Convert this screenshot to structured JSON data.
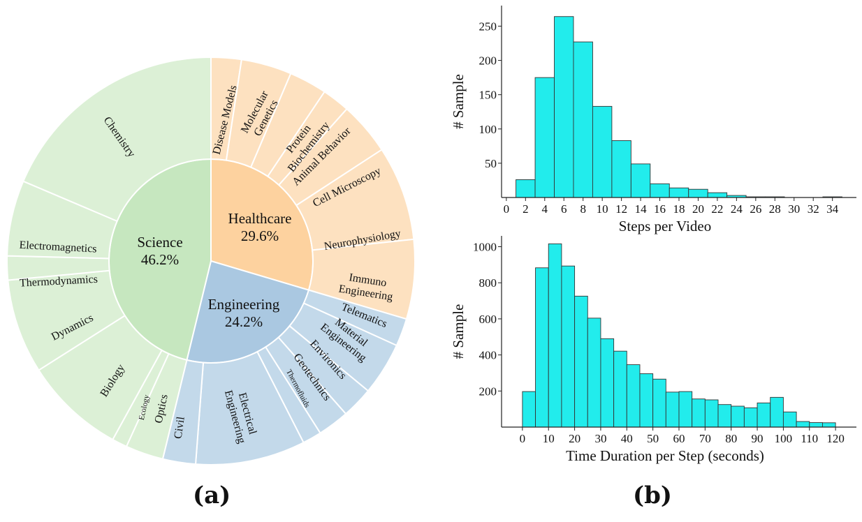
{
  "captions": {
    "a": "(a)",
    "b": "(b)"
  },
  "colors": {
    "science_inner": "#c6e7bf",
    "science_outer": "#dcf0d6",
    "healthcare_inner": "#fdd29f",
    "healthcare_outer": "#fde1c0",
    "engineering_inner": "#aac8e1",
    "engineering_outer": "#c3d9ea",
    "bar_fill": "#22ecec",
    "bar_edge": "#333333"
  },
  "chart_data": [
    {
      "type": "pie",
      "title": "",
      "inner": [
        {
          "name": "Science",
          "label": "46.2%",
          "value": 46.2
        },
        {
          "name": "Healthcare",
          "label": "29.6%",
          "value": 29.6
        },
        {
          "name": "Engineering",
          "label": "24.2%",
          "value": 24.2
        }
      ],
      "outer": [
        {
          "name": "Disease Models",
          "parent": "Healthcare",
          "value": 2.4
        },
        {
          "name": "Molecular Genetics",
          "parent": "Healthcare",
          "value": 4.0
        },
        {
          "name": "Protein Biochemistry",
          "parent": "Healthcare",
          "value": 3.0
        },
        {
          "name": "Animal Behavior",
          "parent": "Healthcare",
          "value": 2.2
        },
        {
          "name": "Cell Microscopy",
          "parent": "Healthcare",
          "value": 4.2
        },
        {
          "name": "Neurophysiology",
          "parent": "Healthcare",
          "value": 7.5
        },
        {
          "name": "Immuno Engineering",
          "parent": "Healthcare",
          "value": 6.3
        },
        {
          "name": "Telematics",
          "parent": "Engineering",
          "value": 2.2
        },
        {
          "name": "Material Engineering",
          "parent": "Engineering",
          "value": 4.2
        },
        {
          "name": "Environics",
          "parent": "Engineering",
          "value": 2.5
        },
        {
          "name": "Geotechnics",
          "parent": "Engineering",
          "value": 2.5
        },
        {
          "name": "Thermofluids",
          "parent": "Engineering",
          "value": 1.5
        },
        {
          "name": "Electrical Engineering",
          "parent": "Engineering",
          "value": 8.7
        },
        {
          "name": "Civil",
          "parent": "Engineering",
          "value": 2.6
        },
        {
          "name": "Optics",
          "parent": "Science",
          "value": 3.0
        },
        {
          "name": "Ecology",
          "parent": "Science",
          "value": 1.2
        },
        {
          "name": "Biology",
          "parent": "Science",
          "value": 8.0
        },
        {
          "name": "Dynamics",
          "parent": "Science",
          "value": 7.5
        },
        {
          "name": "Thermodynamics",
          "parent": "Science",
          "value": 1.9
        },
        {
          "name": "Electromagnetics",
          "parent": "Science",
          "value": 6.0
        },
        {
          "name": "Chemistry",
          "parent": "Science",
          "value": 18.6
        }
      ]
    },
    {
      "type": "bar",
      "title": "",
      "xlabel": "Steps per Video",
      "ylabel": "# Sample",
      "xlim": [
        -0.5,
        36.5
      ],
      "ylim": [
        0,
        280
      ],
      "xticks": [
        0,
        2,
        4,
        6,
        8,
        10,
        12,
        14,
        16,
        18,
        20,
        22,
        24,
        26,
        28,
        30,
        32,
        34
      ],
      "yticks": [
        50,
        100,
        150,
        200,
        250
      ],
      "bin_width": 2,
      "bins": [
        1,
        3,
        5,
        7,
        9,
        11,
        13,
        15,
        17,
        19,
        21,
        23,
        25,
        27,
        29,
        31,
        33
      ],
      "values": [
        26,
        175,
        264,
        227,
        133,
        83,
        49,
        20,
        14,
        12,
        7,
        3,
        1,
        1,
        0,
        0,
        1
      ]
    },
    {
      "type": "bar",
      "title": "",
      "xlabel": "Time Duration per Step (seconds)",
      "ylabel": "# Sample",
      "xlim": [
        -8,
        128
      ],
      "ylim": [
        0,
        1060
      ],
      "xticks": [
        0,
        10,
        20,
        30,
        40,
        50,
        60,
        70,
        80,
        90,
        100,
        110,
        120
      ],
      "yticks": [
        200,
        400,
        600,
        800,
        1000
      ],
      "bin_width": 5,
      "bins": [
        0,
        5,
        10,
        15,
        20,
        25,
        30,
        35,
        40,
        45,
        50,
        55,
        60,
        65,
        70,
        75,
        80,
        85,
        90,
        95,
        100,
        105,
        110,
        115
      ],
      "values": [
        197,
        883,
        1016,
        893,
        726,
        604,
        490,
        421,
        346,
        296,
        266,
        194,
        197,
        156,
        151,
        125,
        116,
        107,
        134,
        165,
        84,
        31,
        25,
        24
      ]
    }
  ]
}
